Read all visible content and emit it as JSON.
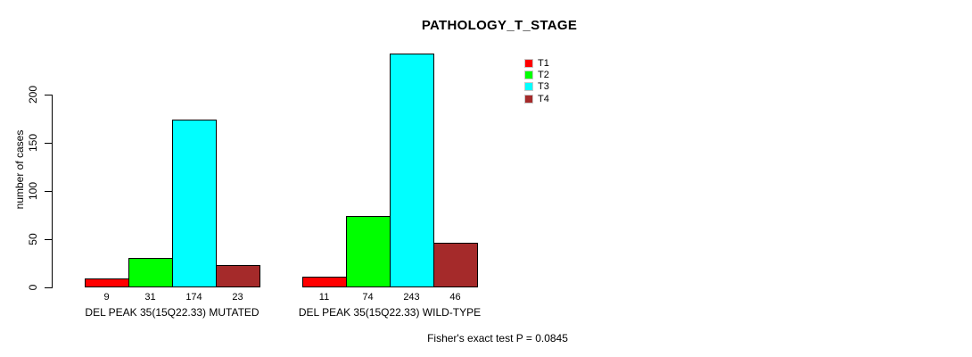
{
  "title": "PATHOLOGY_T_STAGE",
  "footer": "Fisher's exact test P = 0.0845",
  "chart_data": {
    "type": "bar",
    "title": "PATHOLOGY_T_STAGE",
    "xlabel": "",
    "ylabel": "number of cases",
    "categories": [
      "DEL PEAK 35(15Q22.33) MUTATED",
      "DEL PEAK 35(15Q22.33) WILD-TYPE"
    ],
    "series": [
      {
        "name": "T1",
        "color": "#ff0000",
        "values": [
          9,
          11
        ]
      },
      {
        "name": "T2",
        "color": "#00ff00",
        "values": [
          31,
          74
        ]
      },
      {
        "name": "T3",
        "color": "#00ffff",
        "values": [
          174,
          243
        ]
      },
      {
        "name": "T4",
        "color": "#a52a2a",
        "values": [
          23,
          46
        ]
      }
    ],
    "yticks": [
      0,
      50,
      100,
      150,
      200
    ],
    "ylim": [
      0,
      243
    ],
    "grid": false,
    "legend_position": "top-right",
    "bar_value_labels": true,
    "annotation": "Fisher's exact test P = 0.0845"
  }
}
